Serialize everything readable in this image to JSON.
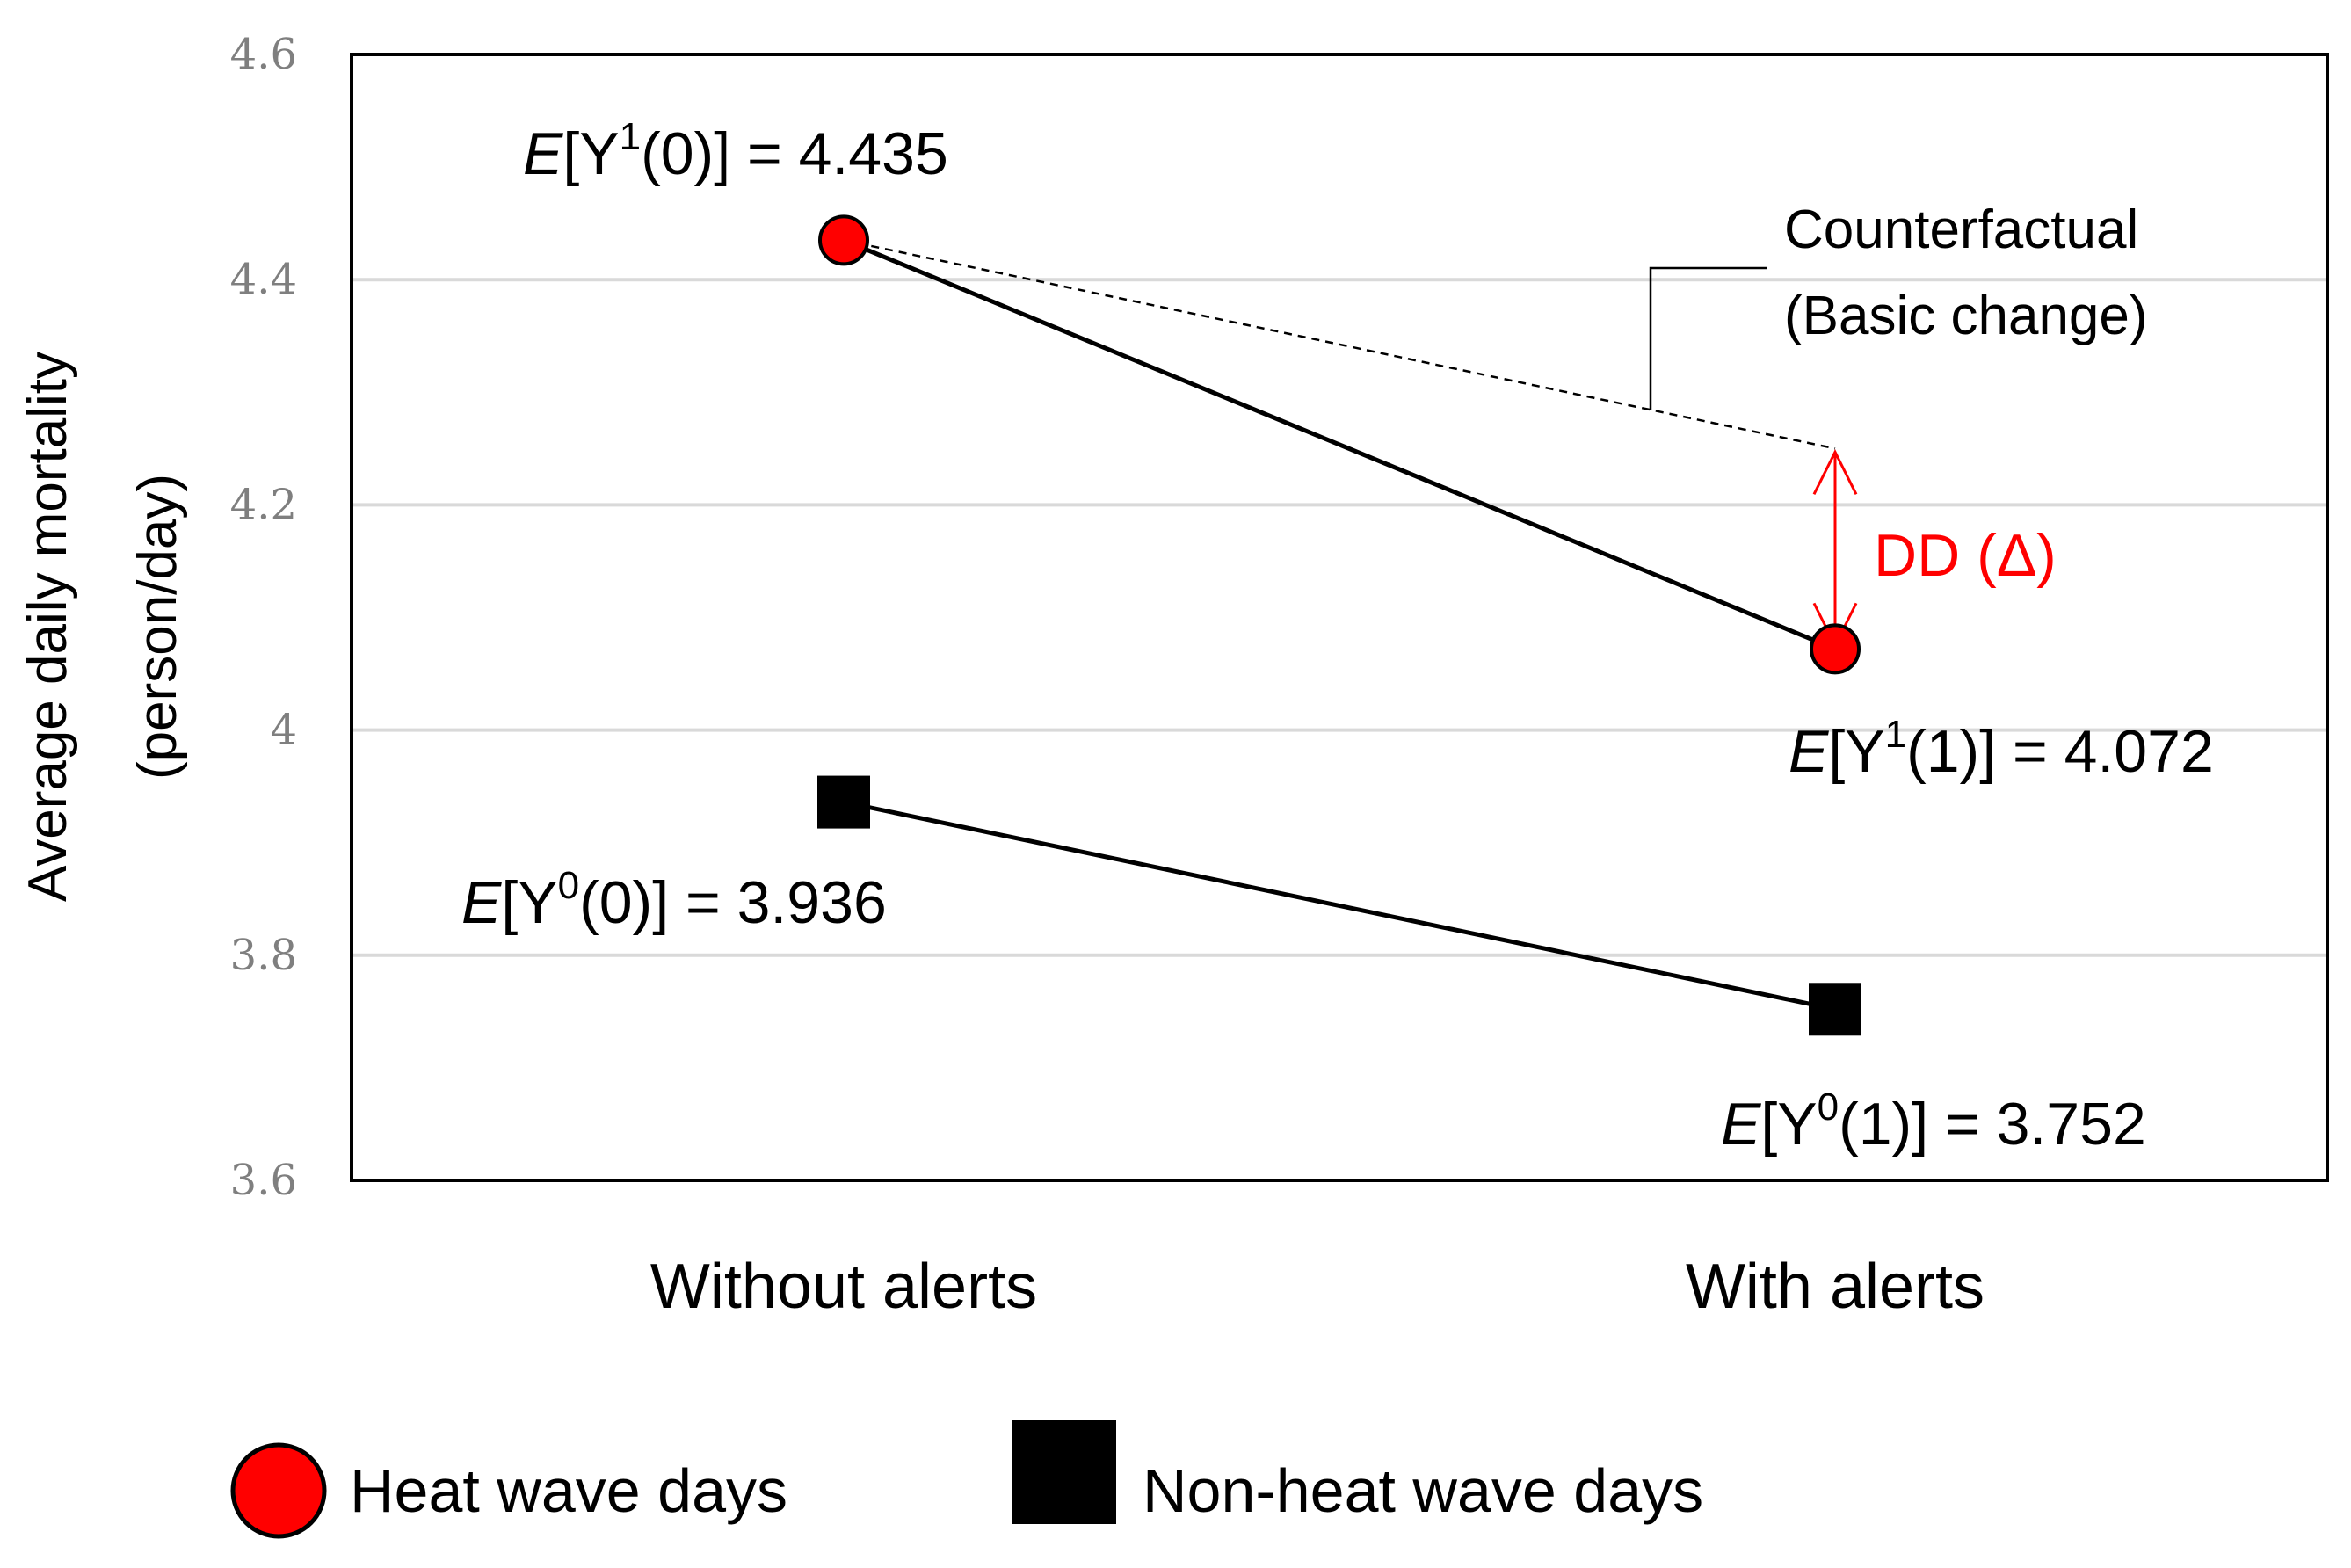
{
  "chart_data": {
    "type": "line",
    "categories": [
      "Without alerts",
      "With alerts"
    ],
    "series": [
      {
        "name": "Heat wave days",
        "values": [
          4.435,
          4.072
        ],
        "marker": "circle",
        "color": "#ff0000"
      },
      {
        "name": "Non-heat wave days",
        "values": [
          3.936,
          3.752
        ],
        "marker": "square",
        "color": "#000000"
      }
    ],
    "counterfactual": {
      "values": [
        4.435,
        4.25
      ],
      "label_line1": "Counterfactual",
      "label_line2": "(Basic change)"
    },
    "dd_label": "DD (Δ)",
    "dd_color": "#ff0000",
    "annotations": {
      "y1_0": {
        "pre": "E",
        "mid": "[Y",
        "sup": "1",
        "post": "(0)] = 4.435"
      },
      "y1_1": {
        "pre": "E",
        "mid": "[Y",
        "sup": "1",
        "post": "(1)] = 4.072"
      },
      "y0_0": {
        "pre": "E",
        "mid": "[Y",
        "sup": "0",
        "post": "(0)] = 3.936"
      },
      "y0_1": {
        "pre": "E",
        "mid": "[Y",
        "sup": "0",
        "post": "(1)] = 3.752"
      }
    },
    "ylabel_line1": "Average daily mortality",
    "ylabel_line2": "(person/day)",
    "ylim": [
      3.6,
      4.6
    ],
    "yticks": [
      3.6,
      3.8,
      4,
      4.2,
      4.4,
      4.6
    ],
    "ytick_labels": [
      "3.6",
      "3.8",
      "4",
      "4.2",
      "4.4",
      "4.6"
    ],
    "grid": true,
    "legend_position": "bottom"
  }
}
